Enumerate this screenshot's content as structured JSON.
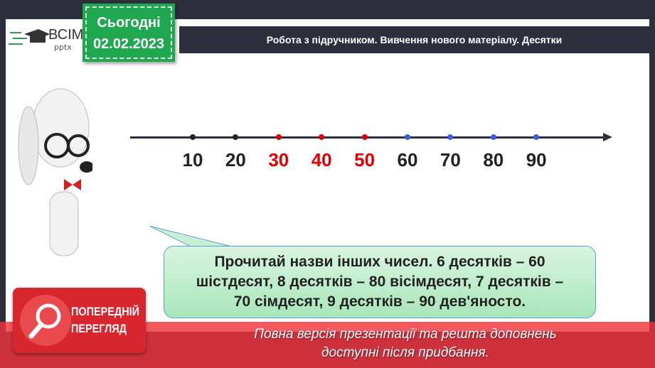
{
  "logo": {
    "text": "ВСІМ",
    "sub": "pptx"
  },
  "date": {
    "label": "Сьогодні",
    "value": "02.02.2023"
  },
  "title": "Робота з підручником. Вивчення нового матеріалу. Десятки",
  "number_line": [
    {
      "label": "10",
      "color": "#222222"
    },
    {
      "label": "20",
      "color": "#222222"
    },
    {
      "label": "30",
      "color": "#e00000"
    },
    {
      "label": "40",
      "color": "#e00000"
    },
    {
      "label": "50",
      "color": "#e00000"
    },
    {
      "label": "60",
      "color": "#222222",
      "dot": "#3a5fdc"
    },
    {
      "label": "70",
      "color": "#222222",
      "dot": "#3a5fdc"
    },
    {
      "label": "80",
      "color": "#222222",
      "dot": "#3a5fdc"
    },
    {
      "label": "90",
      "color": "#222222",
      "dot": "#3a5fdc"
    }
  ],
  "bubble": {
    "lines": [
      "Прочитай назви інших чисел. 6 десятків – 60",
      "шістдесят, 8 десятків – 80 вісімдесят, 7 десятків –",
      "70 сімдесят, 9 десятків – 90 дев'яносто."
    ]
  },
  "preview": {
    "line1": "ПОПЕРЕДНІЙ",
    "line2": "ПЕРЕГЛЯД",
    "icon": "magnifier-icon"
  },
  "notice": {
    "line1": "Повна версія презентації та решта доповнень",
    "line2": "доступні після придбання."
  }
}
